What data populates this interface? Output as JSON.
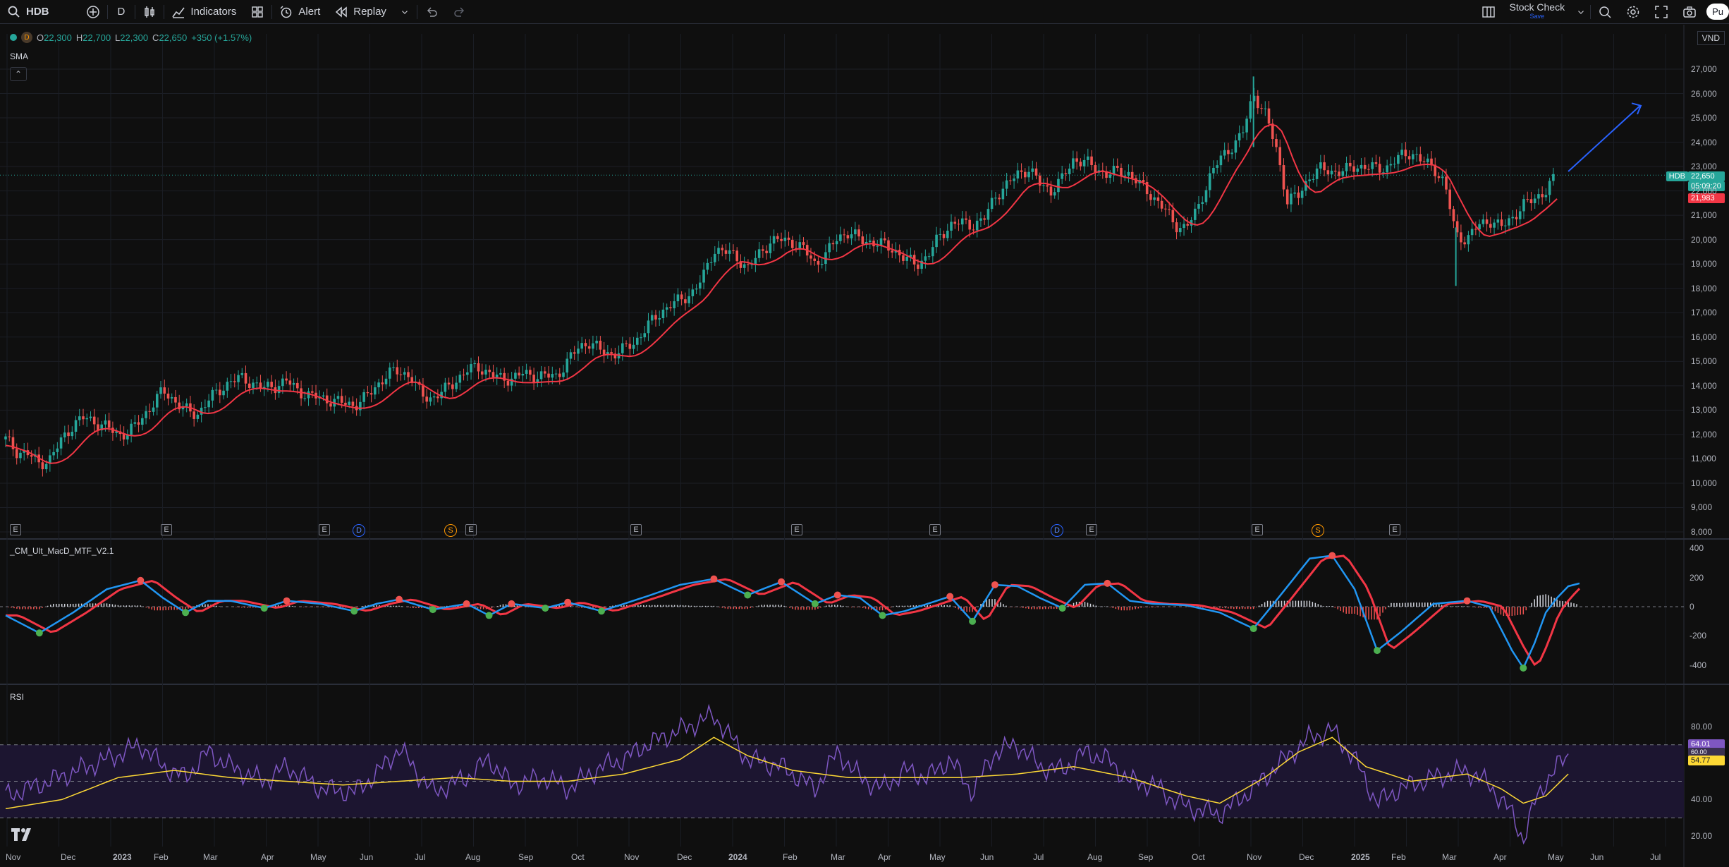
{
  "toolbar": {
    "symbol": "HDB",
    "interval": "D",
    "indicators": "Indicators",
    "alert": "Alert",
    "replay": "Replay",
    "layout_name": "Stock Check",
    "layout_sub": "Save",
    "publish": "Pu"
  },
  "legend": {
    "interval_badge": "D",
    "open_k": "O",
    "open": "22,300",
    "high_k": "H",
    "high": "22,700",
    "low_k": "L",
    "low": "22,300",
    "close_k": "C",
    "close": "22,650",
    "change": "+350 (+1.57%)"
  },
  "panels": {
    "main_title": "SMA",
    "macd_title": "_CM_Ult_MacD_MTF_V2.1",
    "rsi_title": "RSI"
  },
  "currency": "VND",
  "price_tags": {
    "symbol": "HDB",
    "last_price": "22,650",
    "countdown": "05:09:20",
    "sma_value": "21,983",
    "rsi_value": "64.01",
    "rsi_ma": "54.77",
    "rsi_hidden": "60.00"
  },
  "colors": {
    "up": "#26a69a",
    "down": "#ef5350",
    "sma": "#f23645",
    "rsi": "#7e57c2",
    "rsi_ma": "#fdd835",
    "arrow": "#2962ff",
    "macd_fast": "#2196f3",
    "macd_slow": "#4caf50"
  },
  "y_axis_main": [
    "27,000",
    "26,000",
    "25,000",
    "24,000",
    "23,000",
    "22,000",
    "21,000",
    "20,000",
    "19,000",
    "18,000",
    "17,000",
    "16,000",
    "15,000",
    "14,000",
    "13,000",
    "12,000",
    "11,000",
    "10,000",
    "9,000",
    "8,000"
  ],
  "y_axis_macd": [
    "400",
    "200",
    "0",
    "-200",
    "-400"
  ],
  "y_axis_rsi": [
    "80.00",
    "40.00",
    "20.00"
  ],
  "x_axis": [
    "Nov",
    "Dec",
    "2023",
    "Feb",
    "Mar",
    "Apr",
    "May",
    "Jun",
    "Jul",
    "Aug",
    "Sep",
    "Oct",
    "Nov",
    "Dec",
    "2024",
    "Feb",
    "Mar",
    "Apr",
    "May",
    "Jun",
    "Jul",
    "Aug",
    "Sep",
    "Oct",
    "Nov",
    "Dec",
    "2025",
    "Feb",
    "Mar",
    "Apr",
    "May",
    "Jun",
    "Jul"
  ],
  "events": [
    "E",
    "E",
    "E",
    "D",
    "S",
    "E",
    "E",
    "E",
    "E",
    "D",
    "E",
    "E",
    "S",
    "E"
  ],
  "price_path": [
    [
      0,
      11800
    ],
    [
      1,
      11300
    ],
    [
      2,
      11200
    ],
    [
      3,
      10800
    ],
    [
      4,
      11000
    ],
    [
      5,
      11800
    ],
    [
      6,
      12400
    ],
    [
      7,
      12700
    ],
    [
      8,
      12500
    ],
    [
      9,
      12300
    ],
    [
      10,
      12000
    ],
    [
      11,
      12100
    ],
    [
      12,
      12600
    ],
    [
      13,
      13200
    ],
    [
      14,
      13800
    ],
    [
      15,
      13400
    ],
    [
      16,
      13000
    ],
    [
      17,
      12800
    ],
    [
      18,
      13400
    ],
    [
      19,
      13800
    ],
    [
      20,
      14200
    ],
    [
      21,
      14300
    ],
    [
      22,
      14100
    ],
    [
      23,
      13900
    ],
    [
      24,
      14000
    ],
    [
      25,
      14200
    ],
    [
      26,
      13800
    ],
    [
      27,
      13600
    ],
    [
      28,
      13500
    ],
    [
      29,
      13400
    ],
    [
      30,
      13300
    ],
    [
      31,
      13200
    ],
    [
      32,
      13500
    ],
    [
      33,
      14000
    ],
    [
      34,
      14500
    ],
    [
      35,
      14600
    ],
    [
      36,
      14400
    ],
    [
      37,
      13600
    ],
    [
      38,
      13500
    ],
    [
      39,
      13800
    ],
    [
      40,
      14200
    ],
    [
      41,
      14600
    ],
    [
      42,
      14800
    ],
    [
      43,
      14500
    ],
    [
      44,
      14300
    ],
    [
      45,
      14300
    ],
    [
      46,
      14500
    ],
    [
      47,
      14400
    ],
    [
      48,
      14400
    ],
    [
      49,
      14400
    ],
    [
      50,
      15000
    ],
    [
      51,
      15600
    ],
    [
      52,
      15800
    ],
    [
      53,
      15400
    ],
    [
      54,
      15300
    ],
    [
      55,
      15500
    ],
    [
      56,
      15800
    ],
    [
      57,
      16400
    ],
    [
      58,
      16900
    ],
    [
      59,
      17300
    ],
    [
      60,
      17500
    ],
    [
      61,
      17800
    ],
    [
      62,
      18400
    ],
    [
      63,
      19600
    ],
    [
      64,
      19500
    ],
    [
      65,
      19300
    ],
    [
      66,
      18800
    ],
    [
      67,
      19400
    ],
    [
      68,
      19900
    ],
    [
      69,
      20000
    ],
    [
      70,
      19900
    ],
    [
      71,
      19600
    ],
    [
      72,
      19000
    ],
    [
      73,
      19400
    ],
    [
      74,
      20100
    ],
    [
      75,
      20300
    ],
    [
      76,
      20000
    ],
    [
      77,
      19900
    ],
    [
      78,
      19800
    ],
    [
      79,
      19600
    ],
    [
      80,
      19200
    ],
    [
      81,
      19000
    ],
    [
      82,
      19300
    ],
    [
      83,
      20100
    ],
    [
      84,
      20600
    ],
    [
      85,
      20700
    ],
    [
      86,
      20600
    ],
    [
      87,
      20800
    ],
    [
      88,
      21800
    ],
    [
      89,
      22200
    ],
    [
      90,
      22700
    ],
    [
      91,
      22900
    ],
    [
      92,
      22300
    ],
    [
      93,
      22000
    ],
    [
      94,
      22500
    ],
    [
      95,
      23300
    ],
    [
      96,
      23200
    ],
    [
      97,
      22900
    ],
    [
      98,
      22700
    ],
    [
      99,
      22800
    ],
    [
      100,
      22700
    ],
    [
      101,
      22200
    ],
    [
      102,
      21800
    ],
    [
      103,
      21300
    ],
    [
      104,
      20600
    ],
    [
      105,
      20500
    ],
    [
      106,
      21200
    ],
    [
      107,
      22500
    ],
    [
      108,
      23300
    ],
    [
      109,
      23800
    ],
    [
      110,
      24300
    ],
    [
      111,
      26000
    ],
    [
      112,
      25200
    ],
    [
      113,
      23800
    ],
    [
      114,
      21600
    ],
    [
      115,
      21800
    ],
    [
      116,
      22600
    ],
    [
      117,
      22900
    ],
    [
      118,
      22800
    ],
    [
      119,
      22800
    ],
    [
      120,
      23000
    ],
    [
      121,
      23000
    ],
    [
      122,
      22900
    ],
    [
      123,
      23000
    ],
    [
      124,
      23400
    ],
    [
      125,
      23600
    ],
    [
      126,
      23200
    ],
    [
      127,
      23000
    ],
    [
      128,
      22300
    ],
    [
      129,
      20200
    ],
    [
      130,
      20000
    ],
    [
      131,
      20600
    ],
    [
      132,
      20800
    ],
    [
      133,
      20500
    ],
    [
      134,
      20900
    ],
    [
      135,
      21400
    ],
    [
      136,
      21700
    ],
    [
      137,
      22000
    ],
    [
      138,
      22650
    ]
  ],
  "macd_path": [
    [
      0,
      -60
    ],
    [
      3,
      -180
    ],
    [
      6,
      -40
    ],
    [
      9,
      120
    ],
    [
      12,
      180
    ],
    [
      14,
      60
    ],
    [
      16,
      -40
    ],
    [
      18,
      40
    ],
    [
      20,
      40
    ],
    [
      23,
      -10
    ],
    [
      25,
      40
    ],
    [
      28,
      20
    ],
    [
      31,
      -30
    ],
    [
      33,
      20
    ],
    [
      35,
      50
    ],
    [
      38,
      -20
    ],
    [
      41,
      20
    ],
    [
      43,
      -60
    ],
    [
      45,
      20
    ],
    [
      48,
      -10
    ],
    [
      50,
      30
    ],
    [
      53,
      -30
    ],
    [
      55,
      20
    ],
    [
      57,
      70
    ],
    [
      60,
      150
    ],
    [
      63,
      190
    ],
    [
      66,
      80
    ],
    [
      69,
      170
    ],
    [
      72,
      20
    ],
    [
      74,
      80
    ],
    [
      76,
      60
    ],
    [
      78,
      -60
    ],
    [
      80,
      -30
    ],
    [
      82,
      20
    ],
    [
      84,
      70
    ],
    [
      86,
      -100
    ],
    [
      88,
      150
    ],
    [
      90,
      140
    ],
    [
      92,
      60
    ],
    [
      94,
      -10
    ],
    [
      96,
      150
    ],
    [
      98,
      160
    ],
    [
      100,
      40
    ],
    [
      102,
      20
    ],
    [
      105,
      10
    ],
    [
      108,
      -40
    ],
    [
      111,
      -150
    ],
    [
      113,
      40
    ],
    [
      116,
      330
    ],
    [
      118,
      350
    ],
    [
      120,
      120
    ],
    [
      122,
      -300
    ],
    [
      124,
      -180
    ],
    [
      127,
      20
    ],
    [
      130,
      40
    ],
    [
      132,
      0
    ],
    [
      134,
      -300
    ],
    [
      135,
      -420
    ],
    [
      136,
      -250
    ],
    [
      137,
      -40
    ],
    [
      138,
      60
    ],
    [
      139,
      140
    ],
    [
      140,
      160
    ]
  ],
  "rsi_path": [
    [
      0,
      42
    ],
    [
      3,
      48
    ],
    [
      6,
      55
    ],
    [
      9,
      62
    ],
    [
      12,
      70
    ],
    [
      14,
      58
    ],
    [
      16,
      52
    ],
    [
      18,
      66
    ],
    [
      20,
      58
    ],
    [
      23,
      50
    ],
    [
      25,
      58
    ],
    [
      28,
      46
    ],
    [
      31,
      44
    ],
    [
      33,
      54
    ],
    [
      35,
      68
    ],
    [
      38,
      44
    ],
    [
      41,
      52
    ],
    [
      43,
      62
    ],
    [
      45,
      48
    ],
    [
      48,
      52
    ],
    [
      50,
      46
    ],
    [
      53,
      58
    ],
    [
      55,
      62
    ],
    [
      57,
      70
    ],
    [
      60,
      78
    ],
    [
      63,
      86
    ],
    [
      66,
      62
    ],
    [
      69,
      58
    ],
    [
      72,
      46
    ],
    [
      74,
      66
    ],
    [
      76,
      52
    ],
    [
      78,
      46
    ],
    [
      80,
      56
    ],
    [
      82,
      52
    ],
    [
      84,
      62
    ],
    [
      86,
      44
    ],
    [
      88,
      66
    ],
    [
      90,
      70
    ],
    [
      92,
      58
    ],
    [
      94,
      56
    ],
    [
      96,
      66
    ],
    [
      98,
      62
    ],
    [
      100,
      50
    ],
    [
      102,
      48
    ],
    [
      105,
      36
    ],
    [
      108,
      32
    ],
    [
      111,
      46
    ],
    [
      113,
      58
    ],
    [
      116,
      74
    ],
    [
      118,
      78
    ],
    [
      120,
      62
    ],
    [
      122,
      38
    ],
    [
      124,
      46
    ],
    [
      127,
      52
    ],
    [
      130,
      56
    ],
    [
      132,
      48
    ],
    [
      134,
      32
    ],
    [
      135,
      18
    ],
    [
      136,
      38
    ],
    [
      137,
      50
    ],
    [
      138,
      58
    ],
    [
      139,
      64
    ]
  ],
  "rsi_ma_path": [
    [
      0,
      35
    ],
    [
      5,
      40
    ],
    [
      10,
      52
    ],
    [
      15,
      56
    ],
    [
      20,
      52
    ],
    [
      25,
      50
    ],
    [
      30,
      48
    ],
    [
      35,
      50
    ],
    [
      40,
      52
    ],
    [
      45,
      50
    ],
    [
      50,
      50
    ],
    [
      55,
      54
    ],
    [
      60,
      62
    ],
    [
      63,
      74
    ],
    [
      66,
      64
    ],
    [
      70,
      56
    ],
    [
      75,
      52
    ],
    [
      80,
      52
    ],
    [
      85,
      52
    ],
    [
      90,
      54
    ],
    [
      95,
      58
    ],
    [
      100,
      52
    ],
    [
      105,
      42
    ],
    [
      108,
      38
    ],
    [
      112,
      52
    ],
    [
      115,
      66
    ],
    [
      118,
      74
    ],
    [
      121,
      58
    ],
    [
      125,
      50
    ],
    [
      130,
      54
    ],
    [
      133,
      46
    ],
    [
      135,
      38
    ],
    [
      137,
      42
    ],
    [
      139,
      54
    ]
  ]
}
